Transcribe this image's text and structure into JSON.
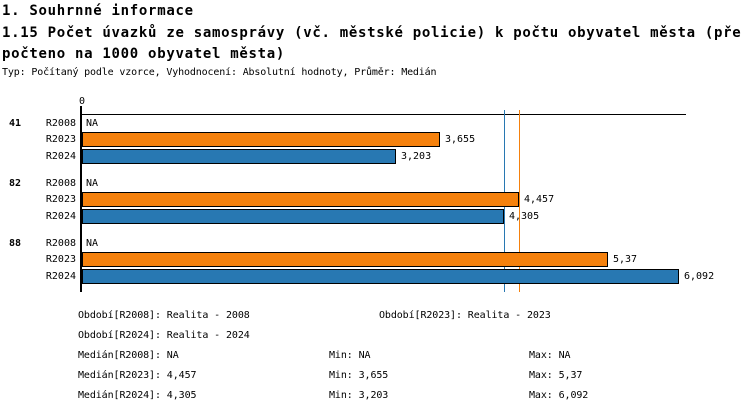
{
  "header": {
    "section_title": "1. Souhrnné informace",
    "indicator_title_line1": "1.15 Počet úvazků ze samosprávy (vč. městské policie) k počtu obyvatel města (pře",
    "indicator_title_line2": "počteno na 1000 obyvatel města)",
    "meta_line": "Typ: Počítaný podle vzorce, Vyhodnocení: Absolutní hodnoty, Průměr: Medián"
  },
  "chart_data": {
    "type": "bar",
    "orientation": "horizontal",
    "title": "1.15 Počet úvazků ze samosprávy (vč. městské policie) k počtu obyvatel města (přepočteno na 1000 obyvatel města)",
    "x_axis": {
      "origin_label": "0",
      "min": 0,
      "max": 6.8,
      "gridlines": false
    },
    "colors": {
      "R2008": "#ffffff",
      "R2023": "#F5810D",
      "R2024": "#2878B2",
      "axis": "#000000"
    },
    "na_text": "NA",
    "groups": [
      {
        "label": "41",
        "rows": [
          {
            "series": "R2008",
            "value": null,
            "display": "NA"
          },
          {
            "series": "R2023",
            "value": 3.655,
            "display": "3,655"
          },
          {
            "series": "R2024",
            "value": 3.203,
            "display": "3,203"
          }
        ]
      },
      {
        "label": "82",
        "rows": [
          {
            "series": "R2008",
            "value": null,
            "display": "NA"
          },
          {
            "series": "R2023",
            "value": 4.457,
            "display": "4,457"
          },
          {
            "series": "R2024",
            "value": 4.305,
            "display": "4,305"
          }
        ]
      },
      {
        "label": "88",
        "rows": [
          {
            "series": "R2008",
            "value": null,
            "display": "NA"
          },
          {
            "series": "R2023",
            "value": 5.37,
            "display": "5,37"
          },
          {
            "series": "R2024",
            "value": 6.092,
            "display": "6,092"
          }
        ]
      }
    ],
    "median_lines": [
      {
        "series": "R2024",
        "value": 4.305,
        "color": "#2878B2"
      },
      {
        "series": "R2023",
        "value": 4.457,
        "color": "#F5810D"
      }
    ]
  },
  "footer": {
    "obdobi_r2008": "Období[R2008]: Realita - 2008",
    "obdobi_r2023": "Období[R2023]: Realita - 2023",
    "obdobi_r2024": "Období[R2024]: Realita - 2024",
    "median_r2008": "Medián[R2008]: NA",
    "median_r2023": "Medián[R2023]: 4,457",
    "median_r2024": "Medián[R2024]: 4,305",
    "min_r2008": "Min: NA",
    "min_r2023": "Min: 3,655",
    "min_r2024": "Min: 3,203",
    "max_r2008": "Max: NA",
    "max_r2023": "Max: 5,37",
    "max_r2024": "Max: 6,092"
  }
}
